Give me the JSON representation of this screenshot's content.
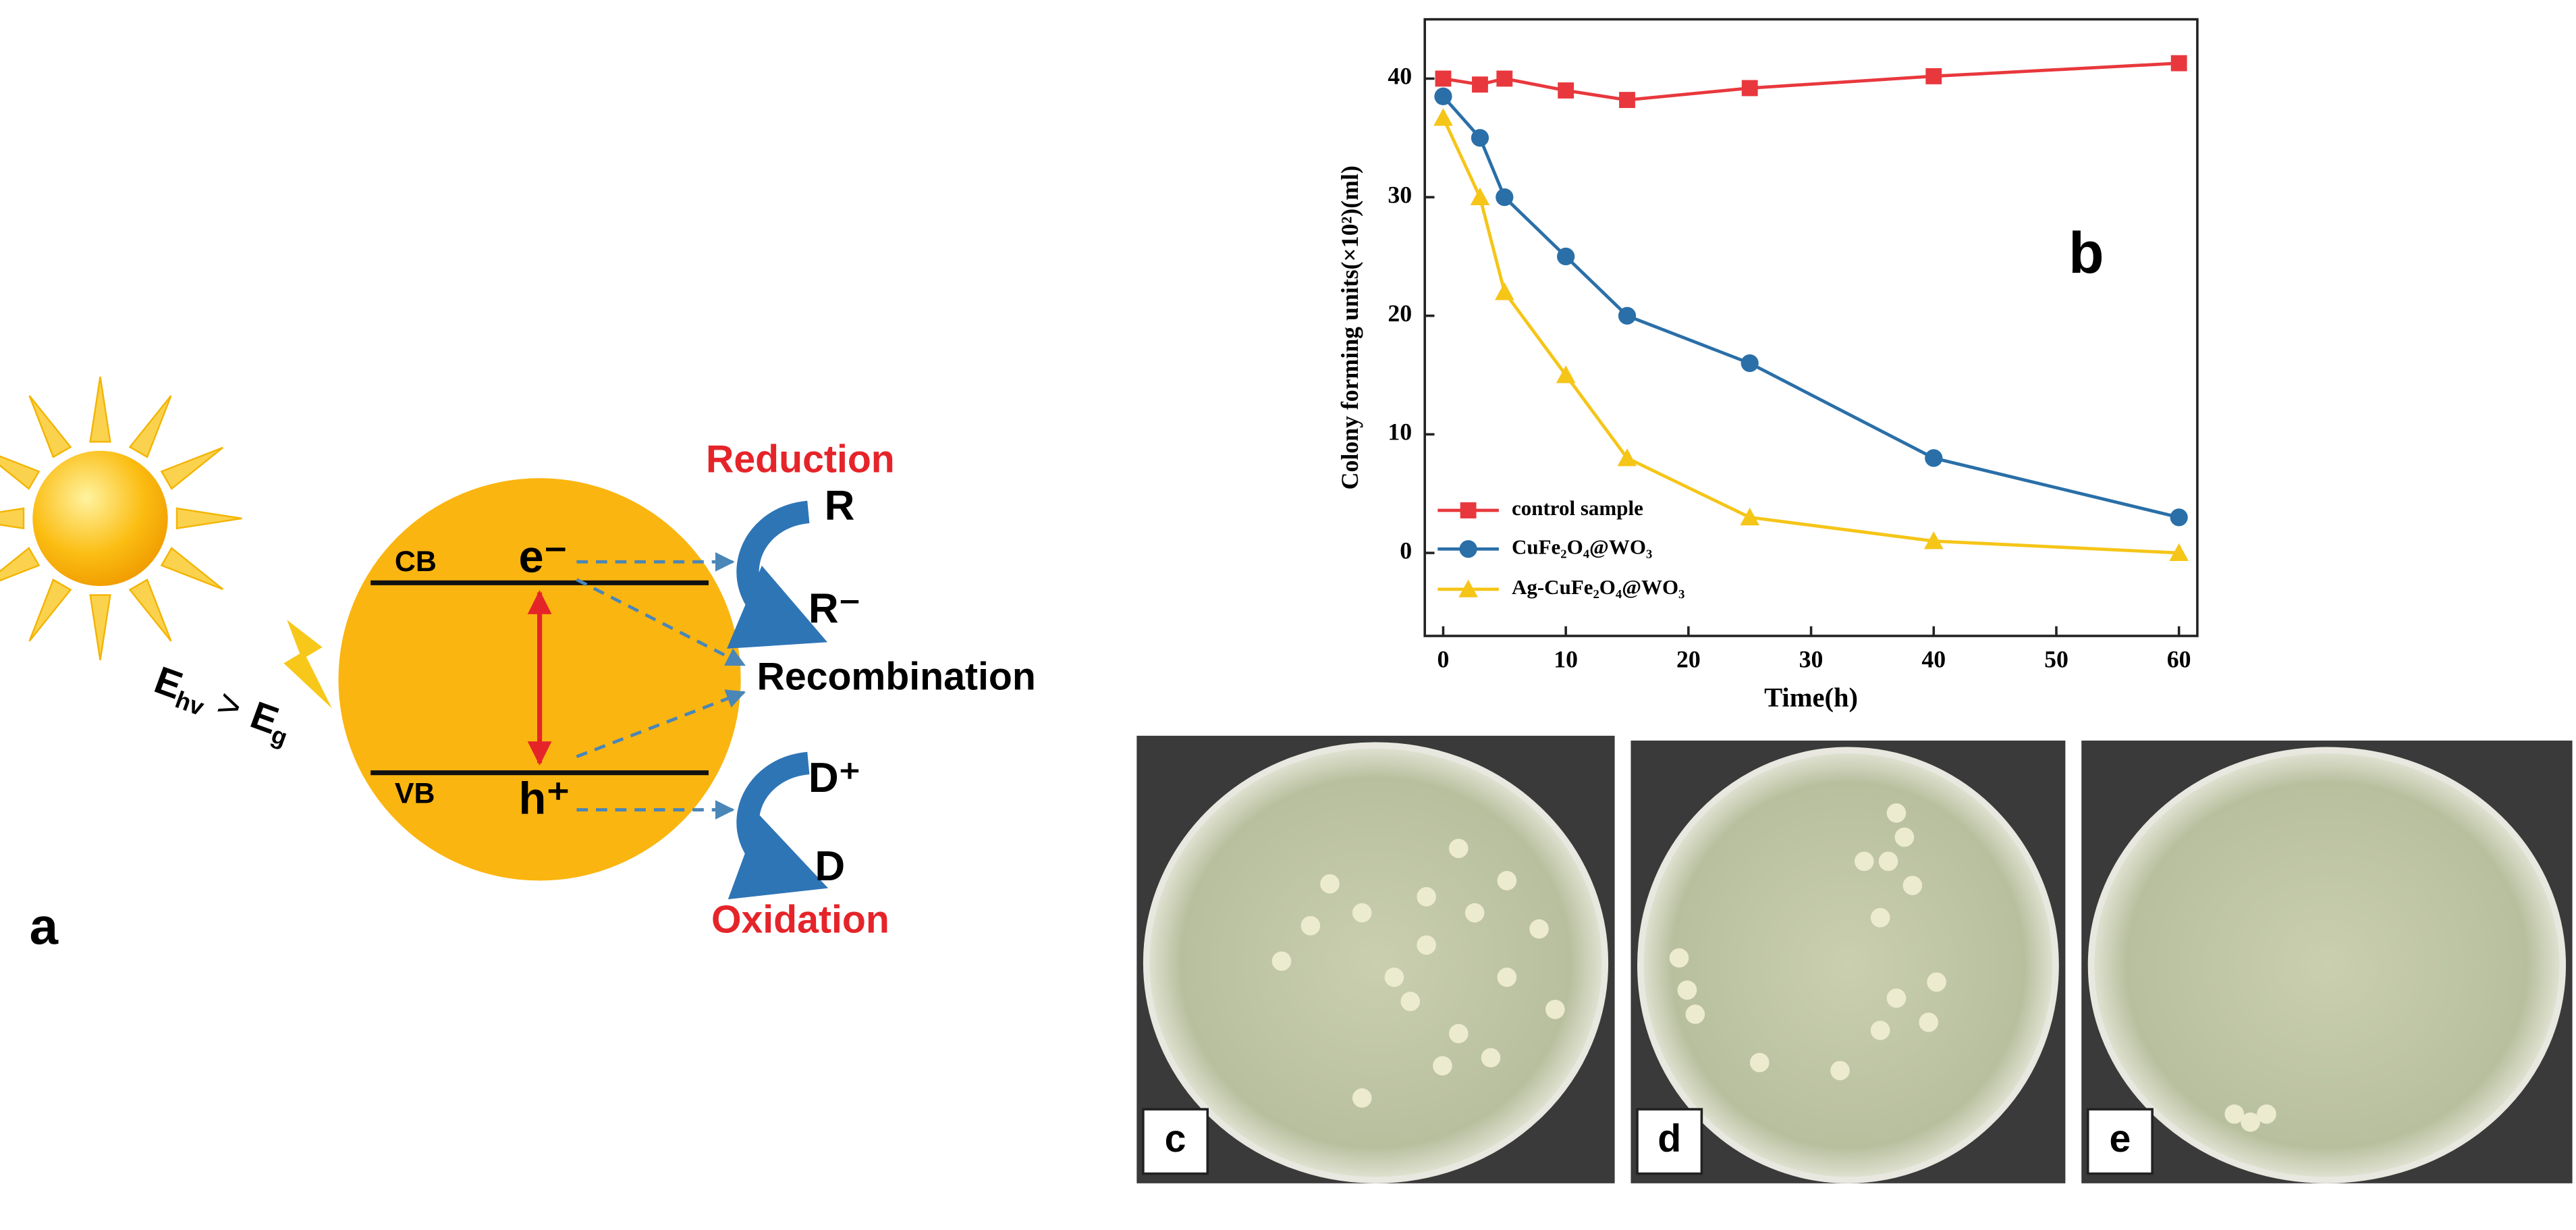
{
  "panel_a": {
    "label": "a",
    "cb": "CB",
    "vb": "VB",
    "electron": "e⁻",
    "hole": "h⁺",
    "reduction": "Reduction",
    "oxidation": "Oxidation",
    "r": "R",
    "r_minus": "R⁻",
    "d_plus": "D⁺",
    "d": "D",
    "recombination": "Recombination",
    "energy_left": "E",
    "energy_left_sub": "hv",
    "relation": ">",
    "energy_right": "E",
    "energy_right_sub": "g"
  },
  "chart_data": {
    "type": "line",
    "panel_label": "b",
    "y_label": "Colony forming units(×10²)(ml)",
    "x_label": "Time(h)",
    "x": [
      0,
      3,
      5,
      10,
      15,
      25,
      40,
      60
    ],
    "series": [
      {
        "name": "control sample",
        "color": "#e8383d",
        "marker": "square",
        "values": [
          40,
          39.5,
          40,
          39,
          38.2,
          39.2,
          40.2,
          41.3
        ]
      },
      {
        "name": "CuFe₂O₄@WO₃",
        "color": "#2a6fa8",
        "marker": "circle",
        "values": [
          38.5,
          35,
          30,
          25,
          20,
          16,
          8,
          3
        ]
      },
      {
        "name": "Ag-CuFe₂O₄@WO₃",
        "color": "#f5c518",
        "marker": "triangle",
        "values": [
          36.7,
          30,
          22,
          15,
          8,
          3,
          1,
          0
        ]
      }
    ],
    "xlim": [
      -1.5,
      61.5
    ],
    "ylim": [
      -7,
      45
    ],
    "xticks": [
      0,
      10,
      20,
      30,
      40,
      50,
      60
    ],
    "yticks": [
      0,
      10,
      20,
      30,
      40
    ],
    "legend": "lower left"
  },
  "photos": {
    "labels": [
      "c",
      "d",
      "e"
    ]
  }
}
